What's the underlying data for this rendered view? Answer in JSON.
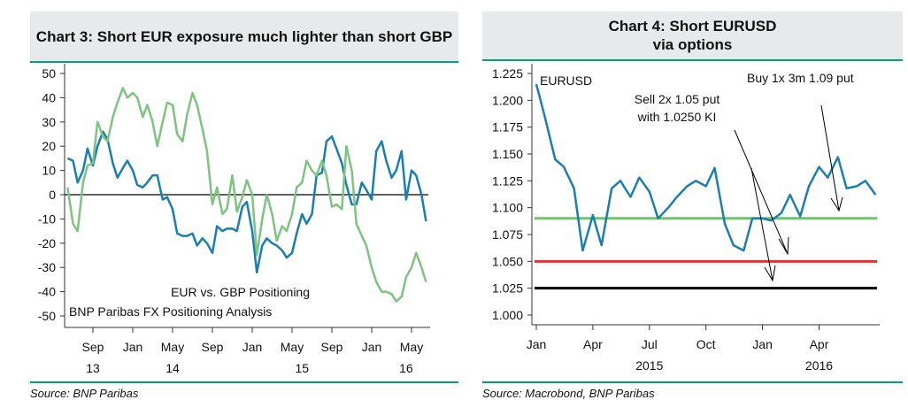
{
  "colors": {
    "eur": "#1a7fb0",
    "gbp": "#7cc47f",
    "eurusd": "#1a7fb0",
    "strike_109": "#6cc46c",
    "strike_105": "#e53030",
    "ki_1025": "#000000",
    "accent": "#00a07c"
  },
  "chart_data": [
    {
      "type": "line",
      "title": "Chart 3: Short EUR exposure much lighter than short GBP",
      "source": "Source: BNP Paribas",
      "annotations": [
        "EUR vs. GBP Positioning",
        "BNP Paribas FX Positioning Analysis"
      ],
      "ylim": [
        -50,
        50
      ],
      "yticks": [
        "50",
        "40",
        "30",
        "20",
        "10",
        "0",
        "-10",
        "-20",
        "-30",
        "-40",
        "-50"
      ],
      "xticks": [
        {
          "date": "2013-09-01",
          "label": "Sep"
        },
        {
          "date": "2014-01-01",
          "label": "Jan"
        },
        {
          "date": "2014-05-01",
          "label": "May"
        },
        {
          "date": "2014-09-01",
          "label": "Sep"
        },
        {
          "date": "2015-01-01",
          "label": "Jan"
        },
        {
          "date": "2015-05-01",
          "label": "May"
        },
        {
          "date": "2015-09-01",
          "label": "Sep"
        },
        {
          "date": "2016-01-01",
          "label": "Jan"
        },
        {
          "date": "2016-05-01",
          "label": "May"
        }
      ],
      "year_labels": [
        {
          "date": "2013-09-01",
          "label": "13"
        },
        {
          "date": "2014-05-01",
          "label": "14"
        },
        {
          "date": "2015-06-01",
          "label": "15"
        },
        {
          "date": "2016-04-15",
          "label": "16"
        }
      ],
      "zero_line": true,
      "x": [
        "2013-06-15",
        "2013-07-01",
        "2013-07-15",
        "2013-08-01",
        "2013-08-15",
        "2013-09-01",
        "2013-09-15",
        "2013-10-01",
        "2013-10-15",
        "2013-11-01",
        "2013-11-15",
        "2013-12-01",
        "2013-12-15",
        "2014-01-01",
        "2014-01-15",
        "2014-02-01",
        "2014-02-15",
        "2014-03-01",
        "2014-03-15",
        "2014-04-01",
        "2014-04-15",
        "2014-05-01",
        "2014-05-15",
        "2014-06-01",
        "2014-06-15",
        "2014-07-01",
        "2014-07-15",
        "2014-08-01",
        "2014-08-15",
        "2014-09-01",
        "2014-09-15",
        "2014-10-01",
        "2014-10-15",
        "2014-11-01",
        "2014-11-15",
        "2014-12-01",
        "2014-12-15",
        "2015-01-01",
        "2015-01-15",
        "2015-02-01",
        "2015-02-15",
        "2015-03-01",
        "2015-03-15",
        "2015-04-01",
        "2015-04-15",
        "2015-05-01",
        "2015-05-15",
        "2015-06-01",
        "2015-06-15",
        "2015-07-01",
        "2015-07-15",
        "2015-08-01",
        "2015-08-15",
        "2015-09-01",
        "2015-09-15",
        "2015-10-01",
        "2015-10-15",
        "2015-11-01",
        "2015-11-15",
        "2015-12-01",
        "2015-12-15",
        "2016-01-01",
        "2016-01-15",
        "2016-02-01",
        "2016-02-15",
        "2016-03-01",
        "2016-03-15",
        "2016-04-01",
        "2016-04-15",
        "2016-05-01",
        "2016-05-15",
        "2016-06-01",
        "2016-06-15"
      ],
      "series": [
        {
          "key": "eur",
          "values": [
            15,
            14,
            5,
            10,
            19,
            12,
            20,
            26,
            23,
            13,
            7,
            11,
            14,
            10,
            4,
            3,
            5,
            8,
            8,
            -2,
            -1,
            -6,
            -16,
            -17,
            -17,
            -16,
            -21,
            -18,
            -20,
            -24,
            -13,
            -15,
            -14,
            -14,
            -15,
            -5,
            -3,
            -15,
            -32,
            -21,
            -18,
            -20,
            -21,
            -23,
            -26,
            -24,
            -16,
            -8,
            -12,
            -8,
            8,
            9,
            22,
            24,
            19,
            13,
            4,
            -4,
            -4,
            5,
            2,
            -2,
            18,
            22,
            14,
            7,
            10,
            18,
            -2,
            10,
            8,
            0,
            -11
          ]
        },
        {
          "key": "gbp",
          "values": [
            3,
            -12,
            -15,
            5,
            12,
            13,
            30,
            24,
            22,
            32,
            38,
            44,
            40,
            42,
            40,
            32,
            37,
            30,
            20,
            30,
            38,
            37,
            25,
            22,
            33,
            42,
            37,
            27,
            18,
            -4,
            3,
            -8,
            -6,
            8,
            -7,
            -1,
            6,
            0,
            -25,
            -10,
            0,
            -8,
            -19,
            -13,
            -15,
            -8,
            3,
            5,
            14,
            10,
            8,
            14,
            8,
            -5,
            -4,
            -6,
            20,
            10,
            -12,
            -17,
            -21,
            -30,
            -36,
            -40,
            -40,
            -41,
            -44,
            -42,
            -34,
            -30,
            -24,
            -30,
            -36
          ]
        }
      ]
    },
    {
      "type": "line",
      "title": "Chart 4: Short EURUSD via options",
      "source": "Source: Macrobond, BNP Paribas",
      "series_label": "EURUSD",
      "annotations": [
        "Sell 2x 1.05 put",
        "with 1.0250 KI",
        "Buy 1x 3m 1.09 put"
      ],
      "ylim": [
        1.0,
        1.225
      ],
      "yticks": [
        "1.225",
        "1.200",
        "1.175",
        "1.150",
        "1.125",
        "1.100",
        "1.075",
        "1.050",
        "1.025",
        "1.000"
      ],
      "xticks": [
        {
          "date": "2015-01-01",
          "label": "Jan"
        },
        {
          "date": "2015-04-01",
          "label": "Apr"
        },
        {
          "date": "2015-07-01",
          "label": "Jul"
        },
        {
          "date": "2015-10-01",
          "label": "Oct"
        },
        {
          "date": "2016-01-01",
          "label": "Jan"
        },
        {
          "date": "2016-04-01",
          "label": "Apr"
        }
      ],
      "year_labels": [
        {
          "date": "2015-07-01",
          "label": "2015"
        },
        {
          "date": "2016-04-01",
          "label": "2016"
        }
      ],
      "hlines": [
        {
          "key": "strike_109",
          "value": 1.09
        },
        {
          "key": "strike_105",
          "value": 1.05
        },
        {
          "key": "ki_1025",
          "value": 1.025
        }
      ],
      "x": [
        "2015-01-01",
        "2015-01-15",
        "2015-02-01",
        "2015-02-15",
        "2015-03-01",
        "2015-03-15",
        "2015-04-01",
        "2015-04-15",
        "2015-05-01",
        "2015-05-15",
        "2015-06-01",
        "2015-06-15",
        "2015-07-01",
        "2015-07-15",
        "2015-08-01",
        "2015-08-15",
        "2015-09-01",
        "2015-09-15",
        "2015-10-01",
        "2015-10-15",
        "2015-11-01",
        "2015-11-15",
        "2015-12-01",
        "2015-12-15",
        "2016-01-01",
        "2016-01-15",
        "2016-02-01",
        "2016-02-15",
        "2016-03-01",
        "2016-03-15",
        "2016-04-01",
        "2016-04-15",
        "2016-05-01",
        "2016-05-15",
        "2016-06-01",
        "2016-06-15",
        "2016-07-01"
      ],
      "series": [
        {
          "key": "eurusd",
          "values": [
            1.215,
            1.184,
            1.145,
            1.138,
            1.118,
            1.06,
            1.093,
            1.065,
            1.118,
            1.125,
            1.11,
            1.128,
            1.115,
            1.09,
            1.1,
            1.11,
            1.12,
            1.125,
            1.12,
            1.137,
            1.085,
            1.065,
            1.06,
            1.09,
            1.09,
            1.088,
            1.095,
            1.112,
            1.092,
            1.12,
            1.138,
            1.128,
            1.147,
            1.118,
            1.12,
            1.125,
            1.112
          ]
        }
      ]
    }
  ]
}
